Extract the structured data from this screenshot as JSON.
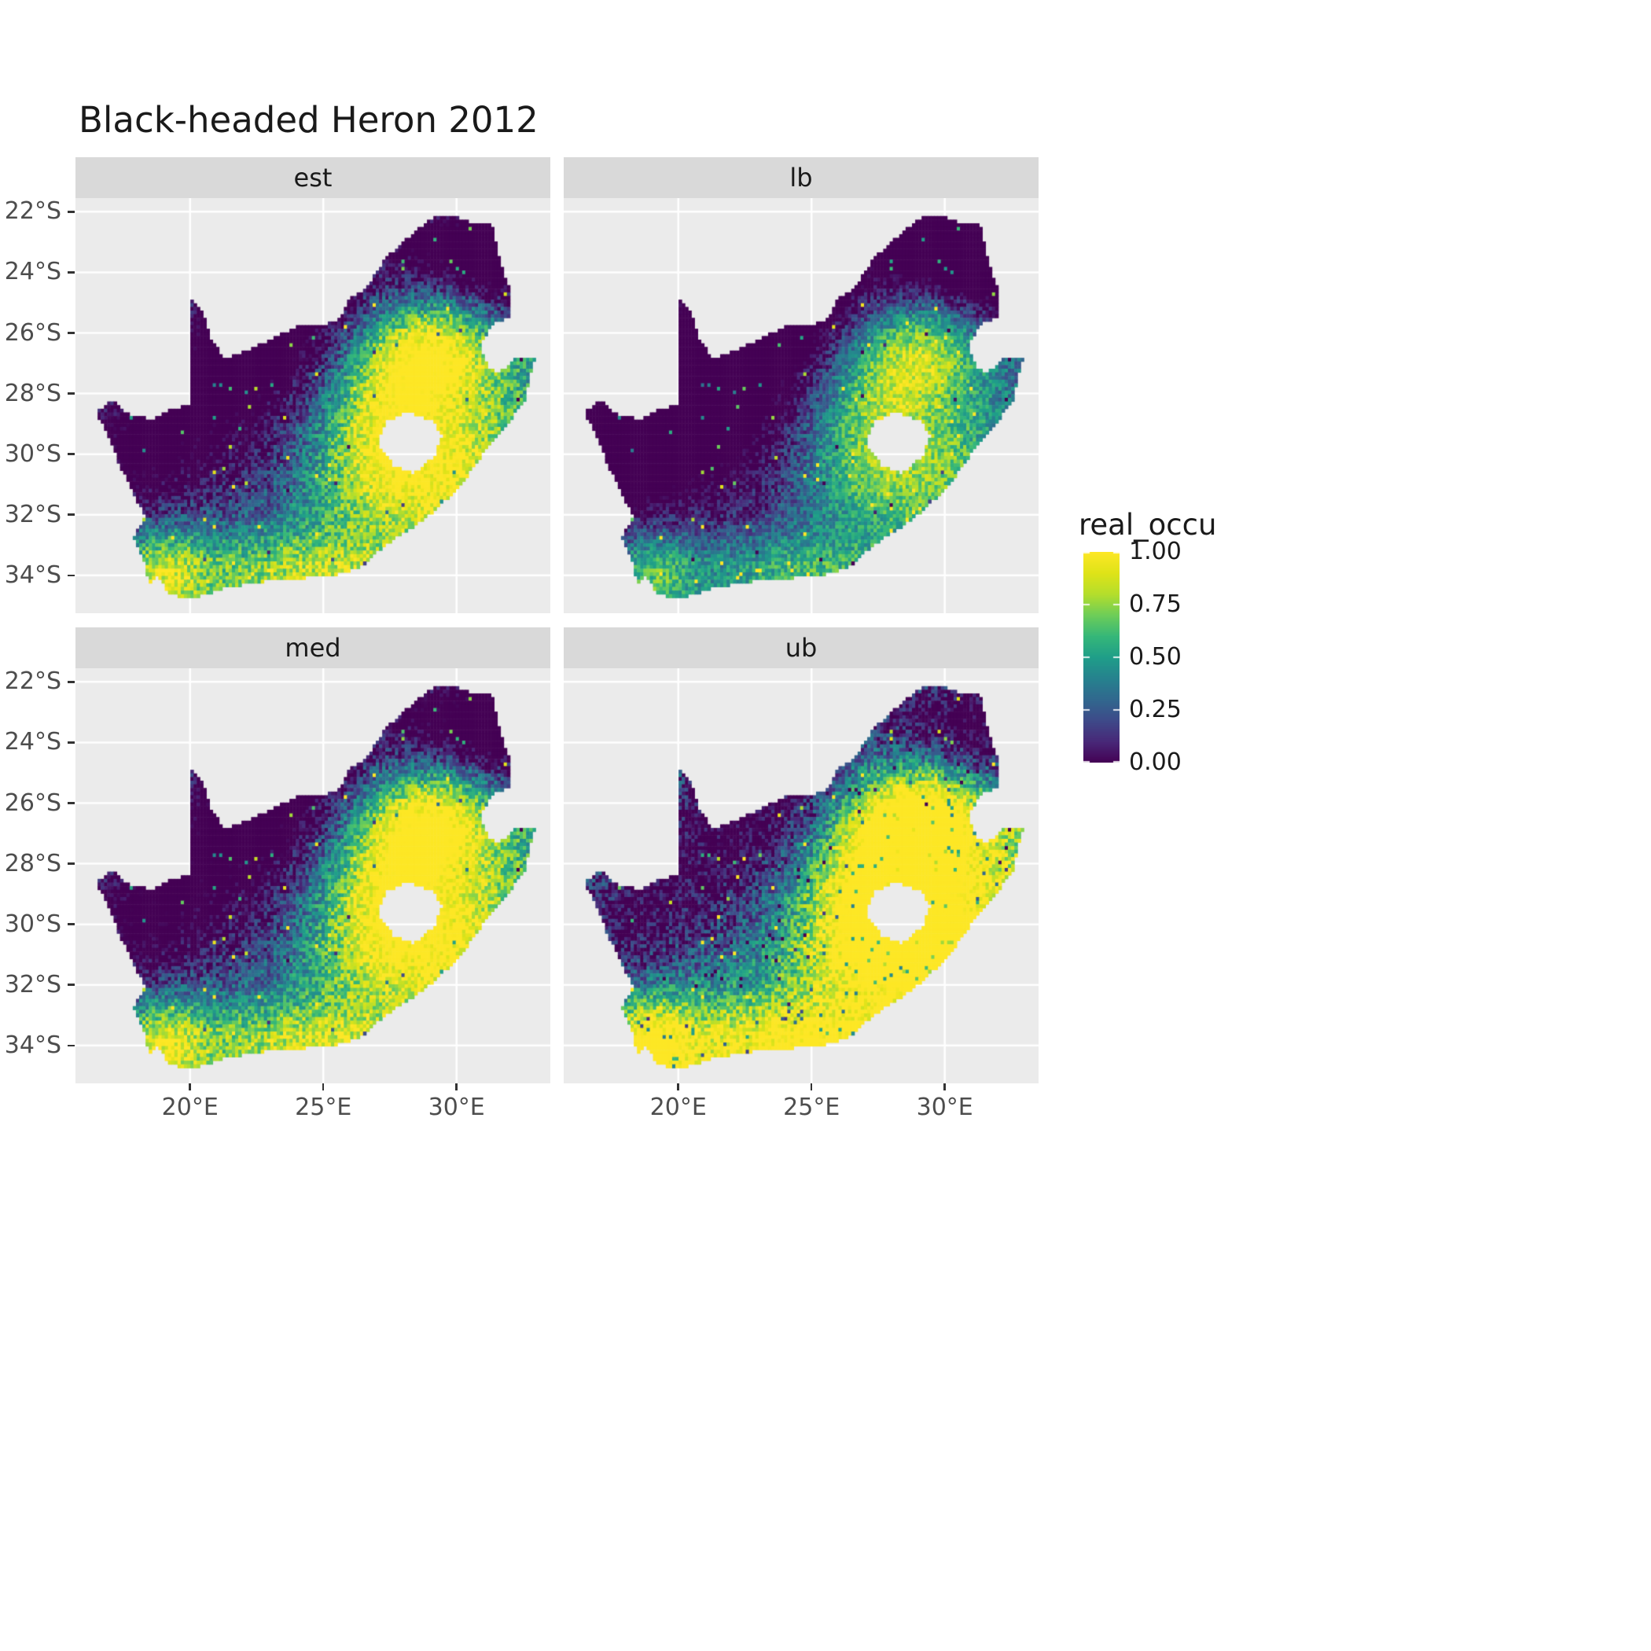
{
  "chart_data": {
    "type": "heatmap",
    "subtype": "faceted_raster_map",
    "title": "Black-headed Heron 2012",
    "facets": [
      "est",
      "lb",
      "med",
      "ub"
    ],
    "legend": {
      "title": "real_occu",
      "breaks": [
        {
          "value": 1.0,
          "label": "1.00"
        },
        {
          "value": 0.75,
          "label": "0.75"
        },
        {
          "value": 0.5,
          "label": "0.50"
        },
        {
          "value": 0.25,
          "label": "0.25"
        },
        {
          "value": 0.0,
          "label": "0.00"
        }
      ]
    },
    "x_ticks": [
      {
        "value": 20,
        "label": "20°E"
      },
      {
        "value": 25,
        "label": "25°E"
      },
      {
        "value": 30,
        "label": "30°E"
      }
    ],
    "y_ticks": [
      {
        "value": -22,
        "label": "22°S"
      },
      {
        "value": -24,
        "label": "24°S"
      },
      {
        "value": -26,
        "label": "26°S"
      },
      {
        "value": -28,
        "label": "28°S"
      },
      {
        "value": -30,
        "label": "30°S"
      },
      {
        "value": -32,
        "label": "32°S"
      },
      {
        "value": -34,
        "label": "34°S"
      }
    ],
    "lon_range": [
      15.7,
      33.52
    ],
    "lat_range": [
      -35.25,
      -21.55
    ],
    "colormap": {
      "name": "viridis",
      "stops": [
        {
          "t": 0.0,
          "color": "#440154"
        },
        {
          "t": 0.1,
          "color": "#482878"
        },
        {
          "t": 0.2,
          "color": "#3E4A89"
        },
        {
          "t": 0.3,
          "color": "#31688E"
        },
        {
          "t": 0.4,
          "color": "#26828E"
        },
        {
          "t": 0.5,
          "color": "#1F9E89"
        },
        {
          "t": 0.6,
          "color": "#35B779"
        },
        {
          "t": 0.7,
          "color": "#6DCD59"
        },
        {
          "t": 0.8,
          "color": "#B4DE2C"
        },
        {
          "t": 0.9,
          "color": "#DFE318"
        },
        {
          "t": 1.0,
          "color": "#FDE725"
        }
      ]
    },
    "theme": {
      "panel_bg": "#EBEBEB",
      "strip_bg": "#D9D9D9",
      "grid": "#FFFFFF",
      "axis_text": "#4D4D4D",
      "tick": "#333333",
      "title_color": "#1A1A1A"
    },
    "region": {
      "name": "South Africa (Lesotho hole, Eswatini notch)",
      "outer": [
        [
          20.0,
          -24.77
        ],
        [
          20.55,
          -25.45
        ],
        [
          20.8,
          -26.2
        ],
        [
          21.3,
          -26.85
        ],
        [
          22.1,
          -26.6
        ],
        [
          22.9,
          -26.25
        ],
        [
          23.95,
          -25.8
        ],
        [
          25.0,
          -25.72
        ],
        [
          25.6,
          -25.55
        ],
        [
          25.95,
          -24.9
        ],
        [
          26.6,
          -24.55
        ],
        [
          27.3,
          -23.55
        ],
        [
          28.1,
          -22.9
        ],
        [
          29.1,
          -22.18
        ],
        [
          29.8,
          -22.12
        ],
        [
          30.4,
          -22.32
        ],
        [
          31.3,
          -22.35
        ],
        [
          31.65,
          -23.7
        ],
        [
          31.98,
          -24.5
        ],
        [
          32.03,
          -25.45
        ],
        [
          31.35,
          -25.72
        ],
        [
          30.88,
          -26.4
        ],
        [
          31.18,
          -27.1
        ],
        [
          31.6,
          -27.32
        ],
        [
          32.15,
          -26.85
        ],
        [
          32.92,
          -26.86
        ],
        [
          32.55,
          -28.25
        ],
        [
          31.9,
          -29.0
        ],
        [
          31.05,
          -29.9
        ],
        [
          30.25,
          -30.9
        ],
        [
          29.4,
          -31.7
        ],
        [
          28.4,
          -32.4
        ],
        [
          27.4,
          -32.95
        ],
        [
          26.4,
          -33.72
        ],
        [
          25.65,
          -33.95
        ],
        [
          24.85,
          -34.05
        ],
        [
          23.6,
          -34.12
        ],
        [
          22.5,
          -34.22
        ],
        [
          21.2,
          -34.45
        ],
        [
          20.0,
          -34.8
        ],
        [
          19.25,
          -34.62
        ],
        [
          18.78,
          -34.05
        ],
        [
          18.45,
          -34.32
        ],
        [
          18.3,
          -33.6
        ],
        [
          17.88,
          -32.75
        ],
        [
          18.3,
          -32.05
        ],
        [
          17.35,
          -30.35
        ],
        [
          16.9,
          -29.3
        ],
        [
          16.45,
          -28.6
        ],
        [
          17.1,
          -28.22
        ],
        [
          17.75,
          -28.72
        ],
        [
          18.6,
          -28.85
        ],
        [
          19.3,
          -28.52
        ],
        [
          19.98,
          -28.35
        ]
      ],
      "hole": [
        [
          27.02,
          -29.62
        ],
        [
          27.38,
          -28.92
        ],
        [
          28.15,
          -28.6
        ],
        [
          29.1,
          -28.9
        ],
        [
          29.45,
          -29.35
        ],
        [
          29.2,
          -30.02
        ],
        [
          28.4,
          -30.65
        ],
        [
          27.65,
          -30.4
        ]
      ]
    },
    "pattern": {
      "cell_deg": 0.12,
      "base": 0.4,
      "noise": 0.38,
      "bumps": [
        {
          "lon": 29.0,
          "lat": -26.5,
          "sx": 2.0,
          "sy": 1.3,
          "amp": 0.75
        },
        {
          "lon": 29.6,
          "lat": -30.6,
          "sx": 2.8,
          "sy": 1.7,
          "amp": 0.5
        },
        {
          "lon": 24.5,
          "lat": -33.9,
          "sx": 3.4,
          "sy": 0.95,
          "amp": 0.45
        },
        {
          "lon": 18.9,
          "lat": -33.9,
          "sx": 1.2,
          "sy": 1.1,
          "amp": 0.5
        },
        {
          "lon": 27.5,
          "lat": -28.3,
          "sx": 1.6,
          "sy": 1.2,
          "amp": 0.35
        },
        {
          "lon": 26.8,
          "lat": -30.5,
          "sx": 2.0,
          "sy": 1.5,
          "amp": 0.25
        },
        {
          "lon": 20.6,
          "lat": -28.6,
          "sx": 3.2,
          "sy": 2.6,
          "amp": -0.55
        },
        {
          "lon": 23.8,
          "lat": -25.6,
          "sx": 2.8,
          "sy": 1.5,
          "amp": -0.45
        },
        {
          "lon": 29.3,
          "lat": -23.2,
          "sx": 2.6,
          "sy": 1.5,
          "amp": -0.55
        },
        {
          "lon": 17.6,
          "lat": -30.8,
          "sx": 1.4,
          "sy": 2.0,
          "amp": -0.28
        },
        {
          "lon": 31.8,
          "lat": -24.2,
          "sx": 1.3,
          "sy": 1.6,
          "amp": -0.35
        }
      ],
      "facet_adjust": [
        {
          "name": "est",
          "scale": 1.0,
          "offset": 0.0,
          "dark_salt": false
        },
        {
          "name": "lb",
          "scale": 0.85,
          "offset": -0.12,
          "dark_salt": false
        },
        {
          "name": "med",
          "scale": 1.02,
          "offset": 0.03,
          "dark_salt": false
        },
        {
          "name": "ub",
          "scale": 1.1,
          "offset": 0.2,
          "dark_salt": true
        }
      ]
    }
  }
}
